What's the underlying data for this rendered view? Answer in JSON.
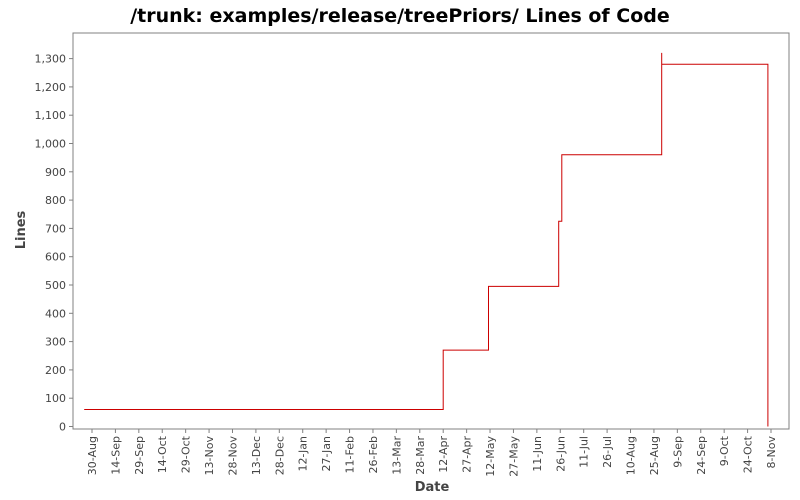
{
  "chart_data": {
    "type": "line",
    "title": "/trunk: examples/release/treePriors/ Lines of Code",
    "xlabel": "Date",
    "ylabel": "Lines",
    "ylim": [
      0,
      1350
    ],
    "y_ticks": [
      0,
      100,
      200,
      300,
      400,
      500,
      600,
      700,
      800,
      900,
      1000,
      1100,
      1200,
      1300
    ],
    "y_tick_labels": [
      "0",
      "100",
      "200",
      "300",
      "400",
      "500",
      "600",
      "700",
      "800",
      "900",
      "1,000",
      "1,100",
      "1,200",
      "1,300"
    ],
    "x_tick_labels": [
      "30-Aug",
      "14-Sep",
      "29-Sep",
      "14-Oct",
      "29-Oct",
      "13-Nov",
      "28-Nov",
      "13-Dec",
      "28-Dec",
      "12-Jan",
      "27-Jan",
      "11-Feb",
      "26-Feb",
      "13-Mar",
      "28-Mar",
      "12-Apr",
      "27-Apr",
      "12-May",
      "27-May",
      "11-Jun",
      "26-Jun",
      "11-Jul",
      "26-Jul",
      "10-Aug",
      "25-Aug",
      "9-Sep",
      "24-Sep",
      "9-Oct",
      "24-Oct",
      "8-Nov"
    ],
    "grid": false,
    "legend": "none",
    "line_color": "#cc0000",
    "series": [
      {
        "points": [
          {
            "x": "25-Aug",
            "y": 60
          },
          {
            "x": "12-Apr",
            "y": 60
          },
          {
            "x": "12-Apr",
            "y": 270
          },
          {
            "x": "11-May",
            "y": 270
          },
          {
            "x": "11-May",
            "y": 495
          },
          {
            "x": "25-Jun",
            "y": 495
          },
          {
            "x": "25-Jun",
            "y": 725
          },
          {
            "x": "27-Jun",
            "y": 725
          },
          {
            "x": "27-Jun",
            "y": 960
          },
          {
            "x": "30-Aug",
            "y": 960
          },
          {
            "x": "30-Aug",
            "y": 1320
          },
          {
            "x": "30-Aug",
            "y": 1280
          },
          {
            "x": "6-Nov",
            "y": 1280
          },
          {
            "x": "6-Nov",
            "y": 0
          }
        ]
      }
    ]
  }
}
